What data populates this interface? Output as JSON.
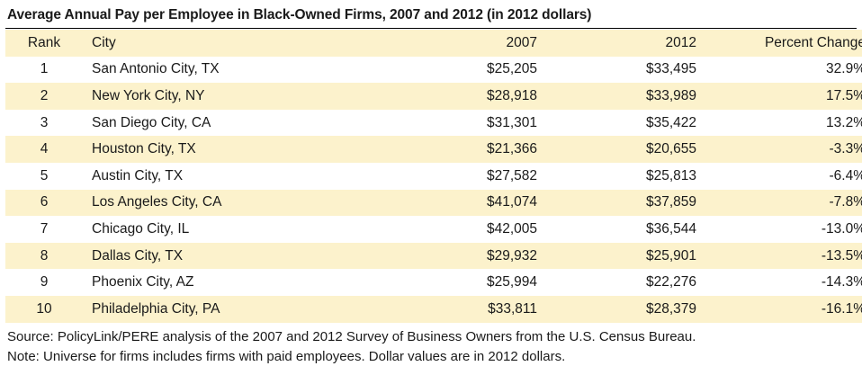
{
  "title": "Average Annual Pay per Employee in Black-Owned Firms, 2007 and 2012 (in 2012 dollars)",
  "headers": {
    "rank": "Rank",
    "city": "City",
    "y2007": "2007",
    "y2012": "2012",
    "pct": "Percent Change"
  },
  "rows": [
    {
      "rank": "1",
      "city": "San Antonio City, TX",
      "y2007": "$25,205",
      "y2012": "$33,495",
      "pct": "32.9%"
    },
    {
      "rank": "2",
      "city": "New York City, NY",
      "y2007": "$28,918",
      "y2012": "$33,989",
      "pct": "17.5%"
    },
    {
      "rank": "3",
      "city": "San Diego City, CA",
      "y2007": "$31,301",
      "y2012": "$35,422",
      "pct": "13.2%"
    },
    {
      "rank": "4",
      "city": "Houston City, TX",
      "y2007": "$21,366",
      "y2012": "$20,655",
      "pct": "-3.3%"
    },
    {
      "rank": "5",
      "city": "Austin City, TX",
      "y2007": "$27,582",
      "y2012": "$25,813",
      "pct": "-6.4%"
    },
    {
      "rank": "6",
      "city": "Los Angeles City, CA",
      "y2007": "$41,074",
      "y2012": "$37,859",
      "pct": "-7.8%"
    },
    {
      "rank": "7",
      "city": "Chicago City, IL",
      "y2007": "$42,005",
      "y2012": "$36,544",
      "pct": "-13.0%"
    },
    {
      "rank": "8",
      "city": "Dallas City, TX",
      "y2007": "$29,932",
      "y2012": "$25,901",
      "pct": "-13.5%"
    },
    {
      "rank": "9",
      "city": "Phoenix City, AZ",
      "y2007": "$25,994",
      "y2012": "$22,276",
      "pct": "-14.3%"
    },
    {
      "rank": "10",
      "city": "Philadelphia City, PA",
      "y2007": "$33,811",
      "y2012": "$28,379",
      "pct": "-16.1%"
    }
  ],
  "source": "Source: PolicyLink/PERE analysis of the 2007 and 2012 Survey of Business Owners from the U.S. Census Bureau.",
  "note": "Note: Universe for firms includes firms with paid employees. Dollar values are in 2012 dollars.",
  "colors": {
    "shaded_row": "#fcf2cc",
    "text": "#1a1a1a",
    "rule": "#000000"
  }
}
